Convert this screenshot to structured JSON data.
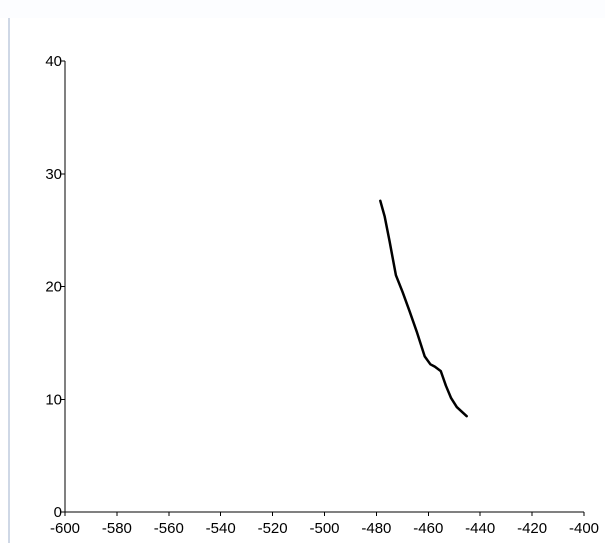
{
  "chart_data": {
    "type": "line",
    "title": "",
    "xlabel": "",
    "ylabel": "",
    "xlim": [
      -600,
      -400
    ],
    "ylim": [
      0,
      40
    ],
    "x_ticks": [
      -600,
      -580,
      -560,
      -540,
      -520,
      -500,
      -480,
      -460,
      -440,
      -420,
      -400
    ],
    "y_ticks": [
      0,
      10,
      20,
      30,
      40
    ],
    "x_tick_labels": [
      "-600",
      "-580",
      "-560",
      "-540",
      "-520",
      "-500",
      "-480",
      "-460",
      "-440",
      "-420",
      "-400"
    ],
    "y_tick_labels": [
      "0",
      "10",
      "20",
      "30",
      "40"
    ],
    "grid": false,
    "series": [
      {
        "color": "#000000",
        "x": [
          -478.5,
          -476.8,
          -474.9,
          -472.5,
          -469.9,
          -467.2,
          -464.3,
          -461.4,
          -459.2,
          -457.5,
          -455.2,
          -453.2,
          -451.2,
          -449.0,
          -447.1,
          -445.2
        ],
        "y": [
          27.6,
          26.2,
          24.0,
          21.0,
          19.5,
          17.8,
          15.9,
          13.8,
          13.1,
          12.9,
          12.5,
          11.2,
          10.1,
          9.3,
          8.9,
          8.5
        ]
      }
    ]
  }
}
